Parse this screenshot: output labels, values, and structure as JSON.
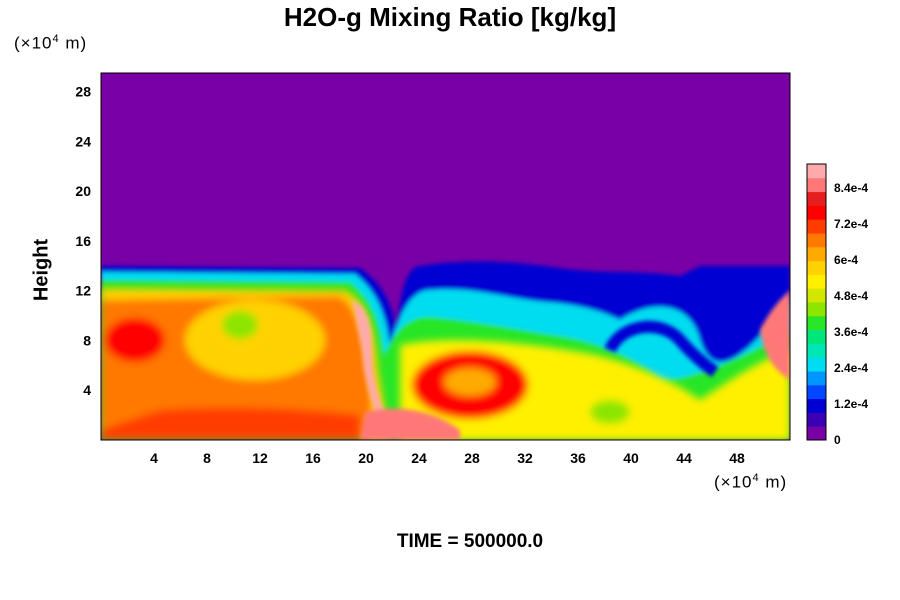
{
  "chart_data": {
    "type": "heatmap",
    "title": "H2O-g Mixing Ratio [kg/kg]",
    "ylabel": "Height",
    "xlabel": "",
    "x_unit_prefix": "(×10",
    "x_unit_exp": "4",
    "x_unit_suffix": " m)",
    "y_unit_prefix": "(×10",
    "y_unit_exp": "4",
    "y_unit_suffix": " m)",
    "xlim": [
      0,
      52
    ],
    "ylim": [
      0,
      29.5
    ],
    "x_ticks": [
      4,
      8,
      12,
      16,
      20,
      24,
      28,
      32,
      36,
      40,
      44,
      48
    ],
    "y_ticks": [
      4,
      8,
      12,
      16,
      20,
      24,
      28
    ],
    "colorbar": {
      "range": [
        0,
        0.00092
      ],
      "tick_values": [
        0,
        0.00012,
        0.00024,
        0.00036,
        0.00048,
        0.0006,
        0.00072,
        0.00084
      ],
      "tick_labels": [
        "0",
        "1.2e-4",
        "2.4e-4",
        "3.6e-4",
        "4.8e-4",
        "6e-4",
        "7.2e-4",
        "8.4e-4"
      ],
      "colors": [
        "#7800a6",
        "#3c00b4",
        "#0000d2",
        "#0046ff",
        "#0096ff",
        "#00dcf0",
        "#00e6b4",
        "#00e678",
        "#28e628",
        "#8ce600",
        "#d2e600",
        "#fff000",
        "#ffd200",
        "#ffaa00",
        "#ff7800",
        "#ff3c00",
        "#ff0000",
        "#e61e1e",
        "#ff7878",
        "#ffaaaa"
      ]
    },
    "annotation": "TIME = 500000.0"
  }
}
